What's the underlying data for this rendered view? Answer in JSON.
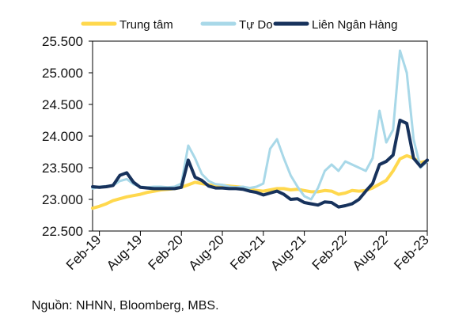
{
  "chart_data": {
    "type": "line",
    "title": "",
    "xlabel": "",
    "ylabel": "",
    "ylim": [
      22500,
      25500
    ],
    "y_ticks": [
      22500,
      23000,
      23500,
      24000,
      24500,
      25000,
      25500
    ],
    "y_tick_labels": [
      "22.500",
      "23.000",
      "23.500",
      "24.000",
      "24.500",
      "25.000",
      "25.500"
    ],
    "x_ticks": [
      "Feb-19",
      "Aug-19",
      "Feb-20",
      "Aug-20",
      "Feb-21",
      "Aug-21",
      "Feb-22",
      "Aug-22",
      "Feb-23"
    ],
    "x_range": [
      "2019-01",
      "2023-02"
    ],
    "grid": false,
    "legend_position": "top",
    "series": [
      {
        "name": "Trung tâm",
        "color": "#FFD84D",
        "points": [
          [
            "2019-01",
            22860
          ],
          [
            "2019-02",
            22890
          ],
          [
            "2019-03",
            22930
          ],
          [
            "2019-04",
            22980
          ],
          [
            "2019-05",
            23010
          ],
          [
            "2019-06",
            23040
          ],
          [
            "2019-07",
            23060
          ],
          [
            "2019-08",
            23080
          ],
          [
            "2019-09",
            23110
          ],
          [
            "2019-10",
            23130
          ],
          [
            "2019-11",
            23150
          ],
          [
            "2019-12",
            23160
          ],
          [
            "2020-01",
            23170
          ],
          [
            "2020-02",
            23190
          ],
          [
            "2020-03",
            23230
          ],
          [
            "2020-04",
            23270
          ],
          [
            "2020-05",
            23250
          ],
          [
            "2020-06",
            23230
          ],
          [
            "2020-07",
            23220
          ],
          [
            "2020-08",
            23220
          ],
          [
            "2020-09",
            23210
          ],
          [
            "2020-10",
            23200
          ],
          [
            "2020-11",
            23190
          ],
          [
            "2020-12",
            23160
          ],
          [
            "2021-01",
            23140
          ],
          [
            "2021-02",
            23130
          ],
          [
            "2021-03",
            23150
          ],
          [
            "2021-04",
            23170
          ],
          [
            "2021-05",
            23170
          ],
          [
            "2021-06",
            23150
          ],
          [
            "2021-07",
            23160
          ],
          [
            "2021-08",
            23140
          ],
          [
            "2021-09",
            23120
          ],
          [
            "2021-10",
            23120
          ],
          [
            "2021-11",
            23140
          ],
          [
            "2021-12",
            23130
          ],
          [
            "2022-01",
            23080
          ],
          [
            "2022-02",
            23100
          ],
          [
            "2022-03",
            23140
          ],
          [
            "2022-04",
            23130
          ],
          [
            "2022-05",
            23140
          ],
          [
            "2022-06",
            23180
          ],
          [
            "2022-07",
            23240
          ],
          [
            "2022-08",
            23300
          ],
          [
            "2022-09",
            23450
          ],
          [
            "2022-10",
            23640
          ],
          [
            "2022-11",
            23690
          ],
          [
            "2022-12",
            23650
          ],
          [
            "2023-01",
            23580
          ],
          [
            "2023-02",
            23610
          ]
        ]
      },
      {
        "name": "Tự Do",
        "color": "#A8D8E8",
        "points": [
          [
            "2019-01",
            23170
          ],
          [
            "2019-02",
            23200
          ],
          [
            "2019-03",
            23210
          ],
          [
            "2019-04",
            23220
          ],
          [
            "2019-05",
            23290
          ],
          [
            "2019-06",
            23320
          ],
          [
            "2019-07",
            23240
          ],
          [
            "2019-08",
            23200
          ],
          [
            "2019-09",
            23190
          ],
          [
            "2019-10",
            23200
          ],
          [
            "2019-11",
            23200
          ],
          [
            "2019-12",
            23190
          ],
          [
            "2020-01",
            23200
          ],
          [
            "2020-02",
            23250
          ],
          [
            "2020-03",
            23850
          ],
          [
            "2020-04",
            23650
          ],
          [
            "2020-05",
            23400
          ],
          [
            "2020-06",
            23290
          ],
          [
            "2020-07",
            23240
          ],
          [
            "2020-08",
            23230
          ],
          [
            "2020-09",
            23200
          ],
          [
            "2020-10",
            23190
          ],
          [
            "2020-11",
            23200
          ],
          [
            "2020-12",
            23180
          ],
          [
            "2021-01",
            23200
          ],
          [
            "2021-02",
            23250
          ],
          [
            "2021-03",
            23800
          ],
          [
            "2021-04",
            23950
          ],
          [
            "2021-05",
            23650
          ],
          [
            "2021-06",
            23380
          ],
          [
            "2021-07",
            23200
          ],
          [
            "2021-08",
            23050
          ],
          [
            "2021-09",
            23000
          ],
          [
            "2021-10",
            23180
          ],
          [
            "2021-11",
            23450
          ],
          [
            "2021-12",
            23550
          ],
          [
            "2022-01",
            23450
          ],
          [
            "2022-02",
            23600
          ],
          [
            "2022-03",
            23550
          ],
          [
            "2022-04",
            23500
          ],
          [
            "2022-05",
            23450
          ],
          [
            "2022-06",
            23650
          ],
          [
            "2022-07",
            24400
          ],
          [
            "2022-08",
            23900
          ],
          [
            "2022-09",
            24100
          ],
          [
            "2022-10",
            25350
          ],
          [
            "2022-11",
            25000
          ],
          [
            "2022-12",
            23950
          ],
          [
            "2023-01",
            23500
          ],
          [
            "2023-02",
            23600
          ]
        ]
      },
      {
        "name": "Liên Ngân Hàng",
        "color": "#17325C",
        "points": [
          [
            "2019-01",
            23200
          ],
          [
            "2019-02",
            23190
          ],
          [
            "2019-03",
            23200
          ],
          [
            "2019-04",
            23220
          ],
          [
            "2019-05",
            23380
          ],
          [
            "2019-06",
            23420
          ],
          [
            "2019-07",
            23270
          ],
          [
            "2019-08",
            23190
          ],
          [
            "2019-09",
            23180
          ],
          [
            "2019-10",
            23170
          ],
          [
            "2019-11",
            23170
          ],
          [
            "2019-12",
            23170
          ],
          [
            "2020-01",
            23170
          ],
          [
            "2020-02",
            23190
          ],
          [
            "2020-03",
            23620
          ],
          [
            "2020-04",
            23350
          ],
          [
            "2020-05",
            23300
          ],
          [
            "2020-06",
            23210
          ],
          [
            "2020-07",
            23180
          ],
          [
            "2020-08",
            23180
          ],
          [
            "2020-09",
            23170
          ],
          [
            "2020-10",
            23170
          ],
          [
            "2020-11",
            23160
          ],
          [
            "2020-12",
            23130
          ],
          [
            "2021-01",
            23110
          ],
          [
            "2021-02",
            23070
          ],
          [
            "2021-03",
            23100
          ],
          [
            "2021-04",
            23130
          ],
          [
            "2021-05",
            23080
          ],
          [
            "2021-06",
            23000
          ],
          [
            "2021-07",
            23010
          ],
          [
            "2021-08",
            22950
          ],
          [
            "2021-09",
            22930
          ],
          [
            "2021-10",
            22910
          ],
          [
            "2021-11",
            22960
          ],
          [
            "2021-12",
            22950
          ],
          [
            "2022-01",
            22880
          ],
          [
            "2022-02",
            22900
          ],
          [
            "2022-03",
            22930
          ],
          [
            "2022-04",
            23000
          ],
          [
            "2022-05",
            23130
          ],
          [
            "2022-06",
            23250
          ],
          [
            "2022-07",
            23550
          ],
          [
            "2022-08",
            23600
          ],
          [
            "2022-09",
            23700
          ],
          [
            "2022-10",
            24250
          ],
          [
            "2022-11",
            24200
          ],
          [
            "2022-12",
            23650
          ],
          [
            "2023-01",
            23520
          ],
          [
            "2023-02",
            23620
          ]
        ]
      }
    ]
  },
  "source_text": "Nguồn: NHNN, Bloomberg, MBS."
}
